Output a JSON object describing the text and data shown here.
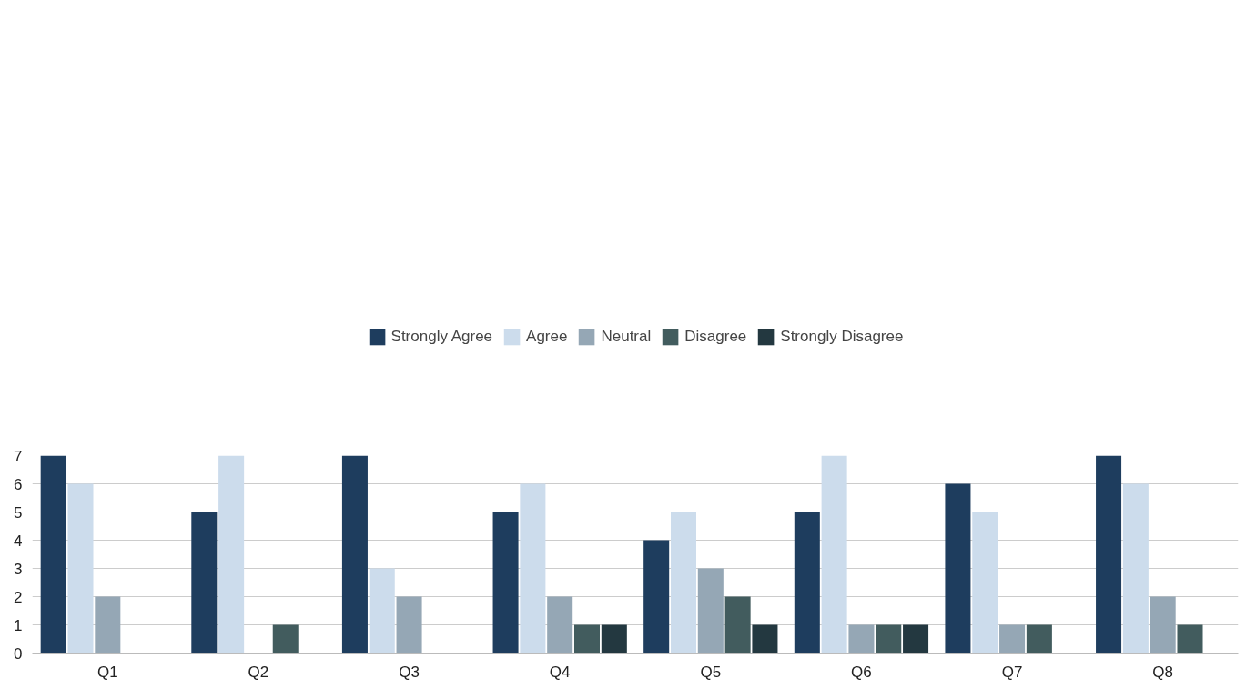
{
  "chart_data": {
    "type": "bar",
    "categories": [
      "Q1",
      "Q2",
      "Q3",
      "Q4",
      "Q5",
      "Q6",
      "Q7",
      "Q8"
    ],
    "series": [
      {
        "name": "Strongly Agree",
        "color": "#1e3d5e",
        "values": [
          7,
          5,
          7,
          5,
          4,
          5,
          6,
          7
        ]
      },
      {
        "name": "Agree",
        "color": "#ccdcec",
        "values": [
          6,
          7,
          3,
          6,
          5,
          7,
          5,
          6
        ]
      },
      {
        "name": "Neutral",
        "color": "#95a7b5",
        "values": [
          2,
          0,
          2,
          2,
          3,
          1,
          1,
          2
        ]
      },
      {
        "name": "Disagree",
        "color": "#425c5e",
        "values": [
          0,
          1,
          0,
          1,
          2,
          1,
          1,
          1
        ]
      },
      {
        "name": "Strongly Disagree",
        "color": "#233840",
        "values": [
          0,
          0,
          0,
          1,
          1,
          1,
          0,
          0
        ]
      }
    ],
    "ylim": [
      0,
      7
    ],
    "yticks": [
      0,
      1,
      2,
      3,
      4,
      5,
      6,
      7
    ],
    "grid": "y",
    "legend": "top"
  }
}
